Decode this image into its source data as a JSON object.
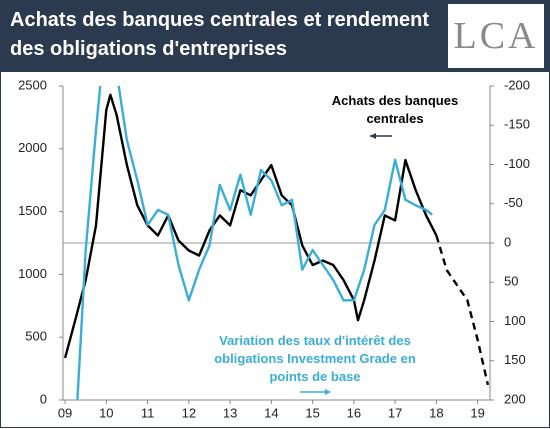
{
  "chart_data": {
    "type": "line",
    "title": "Achats des banques centrales et rendement des obligations d'entreprises",
    "logo": "LCA",
    "xlim": [
      8.95,
      19.3
    ],
    "xticks": [
      {
        "value": 9,
        "label": "09"
      },
      {
        "value": 10,
        "label": "10"
      },
      {
        "value": 11,
        "label": "11"
      },
      {
        "value": 12,
        "label": "12"
      },
      {
        "value": 13,
        "label": "13"
      },
      {
        "value": 14,
        "label": "14"
      },
      {
        "value": 15,
        "label": "15"
      },
      {
        "value": 16,
        "label": "16"
      },
      {
        "value": 17,
        "label": "17"
      },
      {
        "value": 18,
        "label": "18"
      },
      {
        "value": 19,
        "label": "19"
      }
    ],
    "ylim": [
      0,
      2500
    ],
    "yticks": [
      0,
      500,
      1000,
      1500,
      2000,
      2500
    ],
    "y2lim": [
      200,
      -200
    ],
    "y2ticks": [
      -200,
      -150,
      -100,
      -50,
      0,
      50,
      100,
      150,
      200
    ],
    "series": [
      {
        "name": "Achats des banques centrales",
        "color": "#000000",
        "x": [
          9.0,
          9.25,
          9.5,
          9.75,
          10.0,
          10.1,
          10.25,
          10.5,
          10.75,
          11.0,
          11.25,
          11.5,
          11.75,
          12.0,
          12.25,
          12.5,
          12.75,
          13.0,
          13.25,
          13.5,
          13.75,
          14.0,
          14.25,
          14.5,
          14.75,
          15.0,
          15.25,
          15.5,
          15.75,
          16.0,
          16.1,
          16.25,
          16.5,
          16.75,
          17.0,
          17.25,
          17.5,
          17.75,
          18.0
        ],
        "values": [
          335,
          640,
          955,
          1390,
          2310,
          2430,
          2270,
          1870,
          1550,
          1390,
          1310,
          1470,
          1270,
          1190,
          1150,
          1350,
          1470,
          1390,
          1670,
          1630,
          1750,
          1870,
          1630,
          1550,
          1230,
          1075,
          1110,
          1075,
          955,
          795,
          635,
          795,
          1110,
          1470,
          1430,
          1910,
          1670,
          1470,
          1310
        ]
      },
      {
        "color": "#000000",
        "dashed": true,
        "x": [
          18.0,
          18.25,
          18.5,
          18.75,
          19.0,
          19.25
        ],
        "values": [
          1310,
          1035,
          915,
          795,
          480,
          120
        ]
      },
      {
        "name": "Variation des taux d'intérêt des obligations Investment Grade en points de base",
        "color": "#3aaed8",
        "axis": "y2",
        "x": [
          9.3,
          9.5,
          9.75,
          10.0,
          10.3,
          10.5,
          10.75,
          11.0,
          11.25,
          11.5,
          11.75,
          12.0,
          12.25,
          12.5,
          12.75,
          13.0,
          13.25,
          13.5,
          13.75,
          14.0,
          14.25,
          14.5,
          14.75,
          15.0,
          15.25,
          15.5,
          15.75,
          16.0,
          16.25,
          16.5,
          16.75,
          17.0,
          17.25,
          17.5,
          17.75,
          17.9
        ],
        "values": [
          200,
          9,
          -144,
          -280,
          -200,
          -131,
          -80,
          -23,
          -42,
          -36,
          28,
          73,
          34,
          3,
          -74,
          -42,
          -87,
          -36,
          -93,
          -80,
          -48,
          -55,
          34,
          9,
          28,
          47,
          73,
          73,
          34,
          -23,
          -42,
          -106,
          -55,
          -48,
          -42,
          -36
        ]
      }
    ]
  }
}
